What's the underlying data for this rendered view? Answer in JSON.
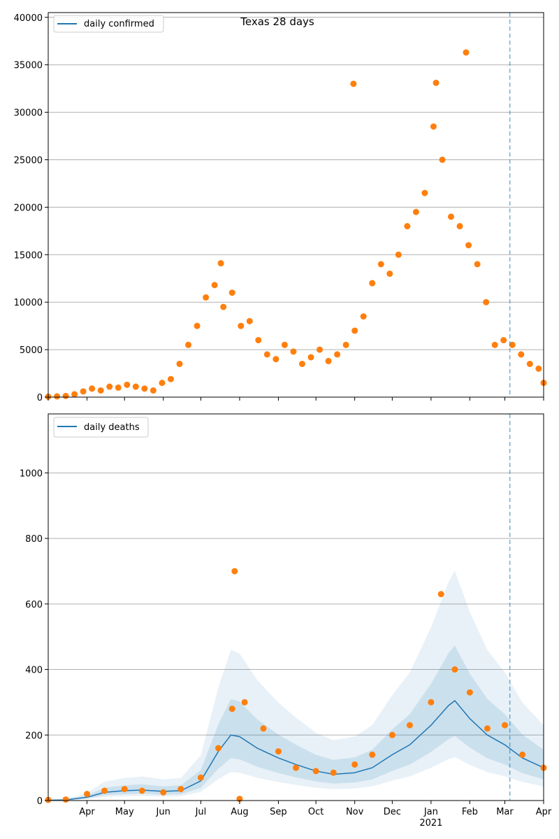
{
  "figure": {
    "title": "Texas 28 days"
  },
  "chart_data": [
    {
      "type": "scatter",
      "title": "Texas 28 days",
      "legend": {
        "entries": [
          "daily confirmed"
        ],
        "placement": "top-left"
      },
      "xlim": [
        "2020-03-01",
        "2021-04-01"
      ],
      "ylim": [
        0,
        40500
      ],
      "yticks": [
        0,
        5000,
        10000,
        15000,
        20000,
        25000,
        30000,
        35000,
        40000
      ],
      "grid": "horizontal",
      "series": [
        {
          "name": "daily confirmed",
          "type": "line",
          "x": [],
          "values": []
        },
        {
          "type": "scatter",
          "color": "#ff7f0e",
          "x": [
            "2020-03-01",
            "2020-03-08",
            "2020-03-15",
            "2020-03-22",
            "2020-03-29",
            "2020-04-05",
            "2020-04-12",
            "2020-04-19",
            "2020-04-26",
            "2020-05-03",
            "2020-05-10",
            "2020-05-17",
            "2020-05-24",
            "2020-05-31",
            "2020-06-07",
            "2020-06-14",
            "2020-06-21",
            "2020-06-28",
            "2020-07-05",
            "2020-07-12",
            "2020-07-19",
            "2020-07-26",
            "2020-08-02",
            "2020-08-09",
            "2020-08-16",
            "2020-08-23",
            "2020-08-30",
            "2020-09-06",
            "2020-09-13",
            "2020-09-20",
            "2020-09-27",
            "2020-10-04",
            "2020-10-11",
            "2020-10-18",
            "2020-10-25",
            "2020-11-01",
            "2020-11-08",
            "2020-11-15",
            "2020-11-22",
            "2020-11-29",
            "2020-12-06",
            "2020-12-13",
            "2020-12-20",
            "2020-12-27",
            "2021-01-03",
            "2021-01-10",
            "2021-01-17",
            "2021-01-24",
            "2021-01-31",
            "2021-02-07",
            "2021-02-14",
            "2021-02-21",
            "2021-02-28",
            "2021-03-07",
            "2021-03-14",
            "2021-03-21",
            "2021-03-28",
            "2021-04-01",
            "2020-07-17",
            "2020-10-31",
            "2021-01-05",
            "2021-01-29"
          ],
          "values": [
            50,
            80,
            120,
            300,
            600,
            900,
            700,
            1100,
            1000,
            1300,
            1100,
            900,
            700,
            1500,
            1900,
            3500,
            5500,
            7500,
            10500,
            11800,
            9500,
            11000,
            7500,
            8000,
            6000,
            4500,
            4000,
            5500,
            4800,
            3500,
            4200,
            5000,
            3800,
            4500,
            5500,
            7000,
            8500,
            12000,
            14000,
            13000,
            15000,
            18000,
            19500,
            21500,
            28500,
            25000,
            19000,
            18000,
            16000,
            14000,
            10000,
            5500,
            6000,
            5500,
            4500,
            3500,
            3000,
            1500,
            14100,
            33000,
            33100,
            36300
          ]
        }
      ]
    },
    {
      "type": "line",
      "legend": {
        "entries": [
          "daily deaths"
        ],
        "placement": "top-left"
      },
      "xlim": [
        "2020-03-01",
        "2021-04-01"
      ],
      "ylim": [
        0,
        1180
      ],
      "yticks": [
        0,
        200,
        400,
        600,
        800,
        1000
      ],
      "xtick_labels": [
        "Apr",
        "May",
        "Jun",
        "Jul",
        "Aug",
        "Sep",
        "Oct",
        "Nov",
        "Dec",
        "Jan\n2021",
        "Feb",
        "Mar",
        "Apr"
      ],
      "grid": "horizontal",
      "series": [
        {
          "name": "daily deaths",
          "type": "line",
          "color": "#1f77b4",
          "x": [
            "2020-03-01",
            "2020-03-15",
            "2020-04-01",
            "2020-04-15",
            "2020-05-01",
            "2020-05-15",
            "2020-06-01",
            "2020-06-15",
            "2020-07-01",
            "2020-07-15",
            "2020-07-25",
            "2020-08-01",
            "2020-08-15",
            "2020-09-01",
            "2020-09-15",
            "2020-10-01",
            "2020-10-15",
            "2020-11-01",
            "2020-11-15",
            "2020-12-01",
            "2020-12-15",
            "2021-01-01",
            "2021-01-15",
            "2021-01-20",
            "2021-02-01",
            "2021-02-15",
            "2021-03-01",
            "2021-03-15",
            "2021-04-01"
          ],
          "values": [
            1,
            2,
            10,
            25,
            30,
            32,
            28,
            30,
            60,
            150,
            200,
            195,
            160,
            130,
            110,
            90,
            80,
            85,
            100,
            140,
            170,
            230,
            290,
            305,
            250,
            200,
            170,
            130,
            100
          ]
        },
        {
          "type": "scatter",
          "color": "#ff7f0e",
          "x": [
            "2020-03-01",
            "2020-03-15",
            "2020-04-01",
            "2020-04-15",
            "2020-05-01",
            "2020-05-15",
            "2020-06-01",
            "2020-06-15",
            "2020-07-01",
            "2020-07-15",
            "2020-07-26",
            "2020-08-05",
            "2020-08-20",
            "2020-09-01",
            "2020-09-15",
            "2020-10-01",
            "2020-10-15",
            "2020-11-01",
            "2020-11-15",
            "2020-12-01",
            "2020-12-15",
            "2021-01-01",
            "2021-01-09",
            "2021-01-20",
            "2021-02-01",
            "2021-02-15",
            "2021-03-01",
            "2021-03-15",
            "2021-04-01",
            "2020-07-28",
            "2020-08-01"
          ],
          "values": [
            2,
            3,
            20,
            30,
            35,
            30,
            25,
            35,
            70,
            160,
            280,
            300,
            220,
            150,
            100,
            90,
            85,
            110,
            140,
            200,
            230,
            300,
            630,
            400,
            330,
            220,
            230,
            140,
            100,
            700,
            5
          ]
        }
      ]
    }
  ]
}
